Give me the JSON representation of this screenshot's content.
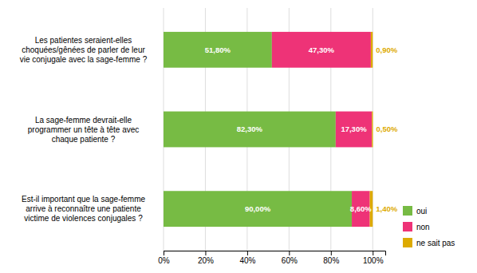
{
  "chart_data": {
    "type": "bar",
    "orientation": "horizontal",
    "stacked": true,
    "categories": [
      "Est-il important que la sage-femme\narrive à reconnaître une patiente\nvictime de violences conjugales ?",
      "La sage-femme devrait-elle\nprogrammer un tête à tête avec\nchaque patiente ?",
      "Les patientes seraient-elles\nchoquées/gênées de parler de leur\nvie conjugale avec la sage-femme ?"
    ],
    "series": [
      {
        "name": "oui",
        "color": "#77bb44",
        "values": [
          90.0,
          82.3,
          51.8
        ],
        "value_labels": [
          "90,00%",
          "82,30%",
          "51,80%"
        ]
      },
      {
        "name": "non",
        "color": "#ee3377",
        "values": [
          8.6,
          17.3,
          47.3
        ],
        "value_labels": [
          "8,60%",
          "17,30%",
          "47,30%"
        ]
      },
      {
        "name": "ne sait pas",
        "color": "#ddaa00",
        "values": [
          1.4,
          0.5,
          0.9
        ],
        "value_labels": [
          "1,40%",
          "0,50%",
          "0,90%"
        ]
      }
    ],
    "xlim": [
      0,
      106
    ],
    "xticks": [
      {
        "value": 0,
        "label": "0%"
      },
      {
        "value": 20,
        "label": "20%"
      },
      {
        "value": 40,
        "label": "40%"
      },
      {
        "value": 60,
        "label": "60%"
      },
      {
        "value": 80,
        "label": "80%"
      },
      {
        "value": 100,
        "label": "100%"
      }
    ],
    "grid": true,
    "legend": "lower right",
    "data_labels": true
  }
}
